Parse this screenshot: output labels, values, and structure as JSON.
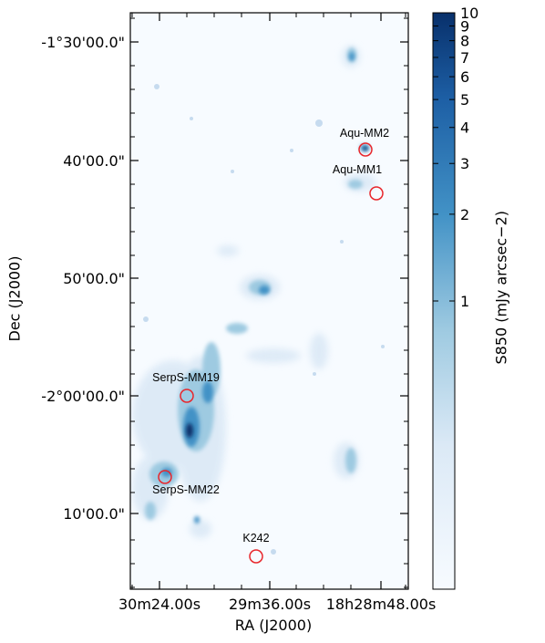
{
  "chart_data": {
    "type": "heatmap",
    "xlabel": "RA (J2000)",
    "ylabel": "Dec (J2000)",
    "colorbar_label": "S850 (mJy arcsec−2)",
    "colormap": "Blues",
    "colors": {
      "low": "#f7fbff",
      "mid": "#6baed6",
      "high": "#08306b",
      "marker": "#e8262b"
    },
    "x_ticks": [
      "30m24.00s",
      "29m36.00s",
      "18h28m48.00s"
    ],
    "y_ticks": [
      "-1°30'00.0\"",
      "40'00.0\"",
      "50'00.0\"",
      "-2°00'00.0\"",
      "10'00.0\""
    ],
    "colorbar_ticks": [
      "10",
      "9",
      "8",
      "7",
      "6",
      "5",
      "4",
      "3",
      "2",
      "1"
    ],
    "colorbar_values": [
      10,
      9,
      8,
      7,
      6,
      5,
      4,
      3,
      2,
      1
    ],
    "colorbar_scale": "log",
    "sources": [
      {
        "name": "Aqu-MM2"
      },
      {
        "name": "Aqu-MM1"
      },
      {
        "name": "SerpS-MM19"
      },
      {
        "name": "SerpS-MM22"
      },
      {
        "name": "K242"
      }
    ]
  }
}
